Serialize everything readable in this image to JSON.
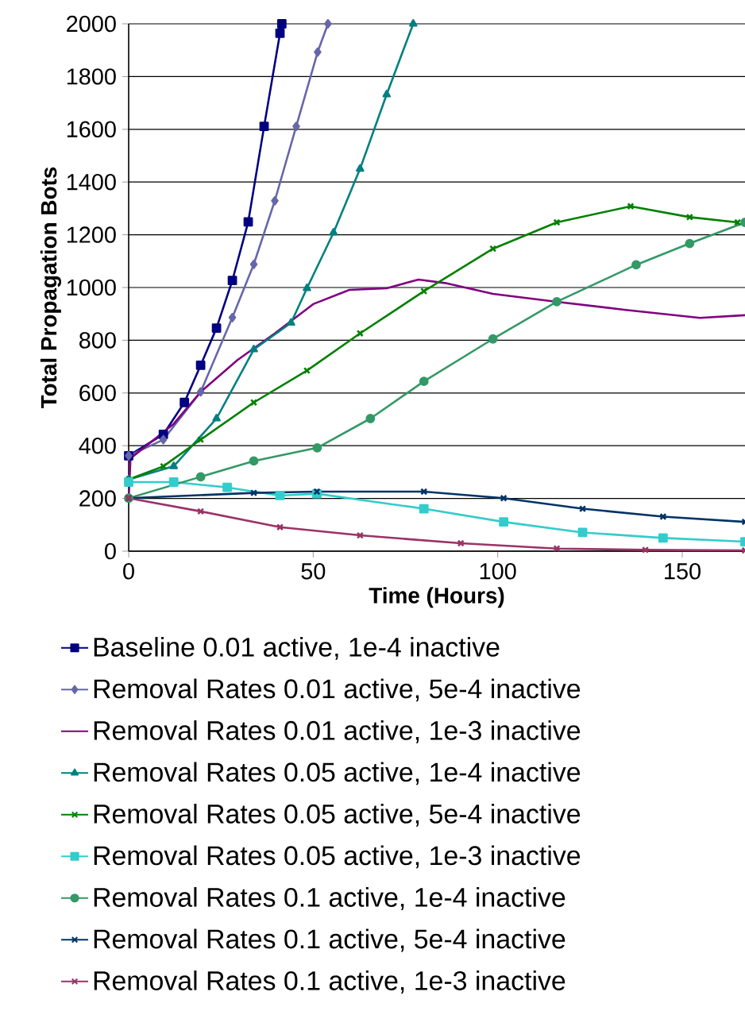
{
  "chart_data": {
    "type": "line",
    "xlabel": "Time (Hours)",
    "ylabel": "Total Propagation Bots",
    "xlim": [
      0,
      167
    ],
    "xticks": [
      0,
      50,
      100,
      150
    ],
    "ylim": [
      0,
      2000
    ],
    "yticks": [
      0,
      200,
      400,
      600,
      800,
      1000,
      1200,
      1400,
      1600,
      1800,
      2000
    ],
    "grid": "y",
    "legend": "bottom",
    "series": [
      {
        "name": "Baseline 0.01 active, 1e-4 inactive",
        "color": "#000080",
        "marker": "square",
        "x": [
          0,
          9.4,
          15.1,
          19.5,
          23.8,
          28.1,
          32.4,
          36.7,
          41,
          41.5
        ],
        "values": [
          362,
          443,
          564,
          705,
          846,
          1027,
          1249,
          1611,
          1964,
          2000
        ]
      },
      {
        "name": "Removal Rates 0.01 active, 5e-4 inactive",
        "color": "#6666aa",
        "marker": "diamond",
        "x": [
          0,
          9.4,
          19.5,
          28.1,
          33.9,
          39.6,
          45.4,
          51.2,
          54
        ],
        "values": [
          362,
          423,
          604,
          886,
          1088,
          1329,
          1611,
          1893,
          2000
        ]
      },
      {
        "name": "Removal Rates 0.01 active, 1e-3 inactive",
        "color": "#800080",
        "marker": "none",
        "x": [
          0,
          0.5,
          12.2,
          19.5,
          29.5,
          39.6,
          50,
          59.8,
          69.9,
          78.5,
          85.7,
          98.7,
          116,
          134.7,
          154.8,
          167
        ],
        "values": [
          200,
          352,
          483,
          604,
          725,
          826,
          937,
          991,
          997,
          1030,
          1017,
          976,
          946,
          915,
          885,
          895
        ]
      },
      {
        "name": "Removal Rates 0.05 active, 1e-4 inactive",
        "color": "#008080",
        "marker": "triangle",
        "x": [
          0,
          12.2,
          23.8,
          33.9,
          44,
          48.3,
          55.5,
          62.7,
          69.9,
          77.1
        ],
        "values": [
          272,
          322,
          503,
          765,
          866,
          997,
          1208,
          1450,
          1732,
          2000
        ]
      },
      {
        "name": "Removal Rates 0.05 active, 5e-4 inactive",
        "color": "#008000",
        "marker": "cross",
        "x": [
          0,
          9.4,
          19.5,
          33.9,
          48.3,
          62.7,
          80,
          98.7,
          116,
          136,
          152,
          165
        ],
        "values": [
          272,
          322,
          423,
          564,
          685,
          826,
          986,
          1147,
          1247,
          1308,
          1267,
          1247
        ]
      },
      {
        "name": "Removal Rates 0.05 active, 1e-3 inactive",
        "color": "#33cccc",
        "marker": "square",
        "x": [
          0,
          12.2,
          26.7,
          41,
          51,
          80,
          101.6,
          123,
          144.8,
          167
        ],
        "values": [
          262,
          262,
          242,
          211,
          218,
          161,
          111,
          71,
          50,
          36
        ]
      },
      {
        "name": "Removal Rates 0.1 active, 1e-4 inactive",
        "color": "#339966",
        "marker": "circle",
        "x": [
          0,
          19.5,
          33.9,
          51.1,
          65.5,
          80,
          98.7,
          116,
          137.5,
          152,
          167
        ],
        "values": [
          201,
          282,
          342,
          392,
          503,
          644,
          805,
          946,
          1086,
          1167,
          1247
        ]
      },
      {
        "name": "Removal Rates 0.1 active, 5e-4 inactive",
        "color": "#003366",
        "marker": "cross",
        "x": [
          0,
          33.9,
          51,
          80,
          101.6,
          123,
          144.8,
          167
        ],
        "values": [
          201,
          221,
          226,
          226,
          201,
          161,
          131,
          111
        ]
      },
      {
        "name": "Removal Rates 0.1 active, 1e-3 inactive",
        "color": "#993366",
        "marker": "cross",
        "x": [
          0,
          19.5,
          41,
          62.7,
          90,
          116,
          140,
          167
        ],
        "values": [
          201,
          151,
          91,
          60,
          30,
          10,
          5,
          3
        ]
      }
    ]
  }
}
